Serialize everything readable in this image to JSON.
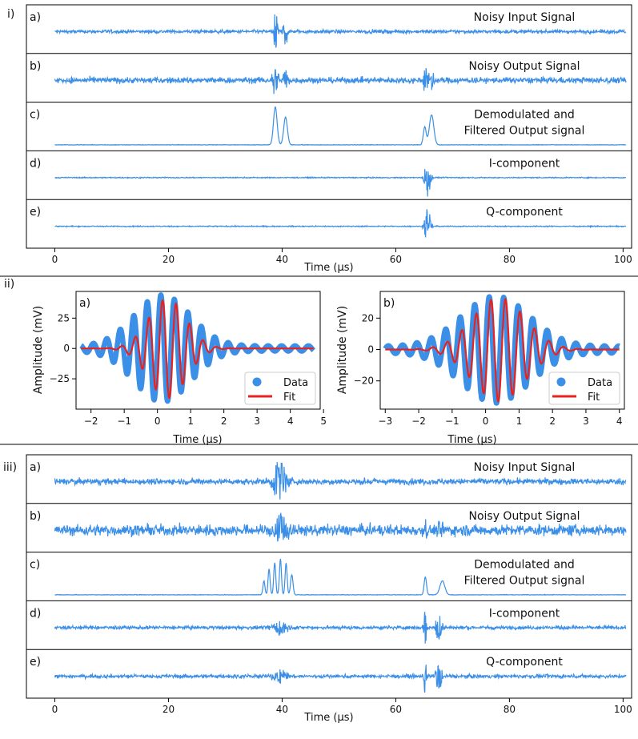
{
  "colors": {
    "data": "#3c8fe6",
    "fit": "#e8231f",
    "frame": "#000000"
  },
  "sections": [
    {
      "label": "i)",
      "xlabel": "Time (µs)",
      "xticks": [
        0,
        20,
        40,
        60,
        80,
        100
      ],
      "xrange": [
        -5,
        101.5
      ],
      "panels": [
        {
          "letter": "a)",
          "title_lines": [
            "Noisy Input Signal"
          ],
          "type": "noisy",
          "noise": 0.07,
          "bursts": [
            {
              "c": 38.8,
              "w": 0.45,
              "a": 0.9,
              "f": 3
            },
            {
              "c": 40.6,
              "w": 0.45,
              "a": 0.65,
              "f": 3
            }
          ]
        },
        {
          "letter": "b)",
          "title_lines": [
            "Noisy Output Signal"
          ],
          "type": "noisy",
          "noise": 0.12,
          "bursts": [
            {
              "c": 38.8,
              "w": 0.5,
              "a": 0.85,
              "f": 3
            },
            {
              "c": 40.6,
              "w": 0.5,
              "a": 0.6,
              "f": 3
            },
            {
              "c": 65.2,
              "w": 0.45,
              "a": 0.55,
              "f": 3
            },
            {
              "c": 66.4,
              "w": 0.5,
              "a": 0.5,
              "f": 3
            }
          ]
        },
        {
          "letter": "c)",
          "title_lines": [
            "Demodulated and",
            "Filtered Output signal"
          ],
          "type": "envelope",
          "noise": 0.01,
          "bursts": [
            {
              "c": 38.8,
              "w": 0.45,
              "a": 0.95
            },
            {
              "c": 40.6,
              "w": 0.45,
              "a": 0.7
            },
            {
              "c": 65.1,
              "w": 0.35,
              "a": 0.45
            },
            {
              "c": 66.3,
              "w": 0.55,
              "a": 0.75
            }
          ]
        },
        {
          "letter": "d)",
          "title_lines": [
            "I-component"
          ],
          "type": "noisy",
          "noise": 0.02,
          "bursts": [
            {
              "c": 65.6,
              "w": 0.55,
              "a": 0.85,
              "f": 2.5
            }
          ]
        },
        {
          "letter": "e)",
          "title_lines": [
            "Q-component"
          ],
          "type": "noisy",
          "noise": 0.02,
          "bursts": [
            {
              "c": 65.6,
              "w": 0.55,
              "a": 0.9,
              "f": 2.5
            }
          ]
        }
      ]
    },
    {
      "label": "iii)",
      "xlabel": "Time (µs)",
      "xticks": [
        0,
        20,
        40,
        60,
        80,
        100
      ],
      "xrange": [
        -5,
        101.5
      ],
      "panels": [
        {
          "letter": "a)",
          "title_lines": [
            "Noisy Input Signal"
          ],
          "type": "noisy",
          "noise": 0.12,
          "bursts": [
            {
              "c": 39.6,
              "w": 1.4,
              "a": 0.85,
              "f": 1.2
            }
          ]
        },
        {
          "letter": "b)",
          "title_lines": [
            "Noisy Output Signal"
          ],
          "type": "noisy",
          "noise": 0.22,
          "bursts": [
            {
              "c": 39.6,
              "w": 1.5,
              "a": 0.7,
              "f": 1.2
            },
            {
              "c": 65.3,
              "w": 0.4,
              "a": 0.4,
              "f": 2
            },
            {
              "c": 68.0,
              "w": 0.6,
              "a": 0.35,
              "f": 2
            }
          ]
        },
        {
          "letter": "c)",
          "title_lines": [
            "Demodulated and",
            "Filtered Output signal"
          ],
          "type": "envelope",
          "noise": 0.01,
          "bursts": [
            {
              "c": 36.8,
              "w": 0.25,
              "a": 0.35
            },
            {
              "c": 37.7,
              "w": 0.25,
              "a": 0.65
            },
            {
              "c": 38.7,
              "w": 0.25,
              "a": 0.8
            },
            {
              "c": 39.7,
              "w": 0.25,
              "a": 0.9
            },
            {
              "c": 40.7,
              "w": 0.25,
              "a": 0.8
            },
            {
              "c": 41.7,
              "w": 0.3,
              "a": 0.5
            },
            {
              "c": 65.2,
              "w": 0.3,
              "a": 0.45
            },
            {
              "c": 68.2,
              "w": 0.6,
              "a": 0.35
            }
          ]
        },
        {
          "letter": "d)",
          "title_lines": [
            "I-component"
          ],
          "type": "noisy",
          "noise": 0.07,
          "bursts": [
            {
              "c": 39.6,
              "w": 1.3,
              "a": 0.35,
              "f": 1.2
            },
            {
              "c": 65.2,
              "w": 0.25,
              "a": 0.95,
              "f": 2
            },
            {
              "c": 67.6,
              "w": 0.7,
              "a": 0.55,
              "f": 2
            }
          ]
        },
        {
          "letter": "e)",
          "title_lines": [
            "Q-component"
          ],
          "type": "noisy",
          "noise": 0.07,
          "bursts": [
            {
              "c": 39.6,
              "w": 1.3,
              "a": 0.35,
              "f": 1.2
            },
            {
              "c": 65.2,
              "w": 0.25,
              "a": 0.95,
              "f": 2
            },
            {
              "c": 67.6,
              "w": 0.7,
              "a": 0.55,
              "f": 2
            }
          ]
        }
      ]
    }
  ],
  "fits": {
    "label": "ii)",
    "xlabel": "Time (µs)",
    "ylabel": "Amplitude (mV)",
    "legend": {
      "data": "Data",
      "fit": "Fit"
    },
    "panels": [
      {
        "letter": "a)",
        "xrange": [
          -2.45,
          4.9
        ],
        "yrange": [
          -50,
          47
        ],
        "xticks": [
          -2,
          -1,
          0,
          1,
          2,
          3,
          4,
          5
        ],
        "yticks": [
          25,
          0,
          -25
        ],
        "data_amp": 42,
        "data_center": 0.15,
        "data_width": 0.75,
        "fit_amp": 41,
        "fit_center": 0.3,
        "fit_width": 0.5,
        "freq": 2.45,
        "span": [
          -2.3,
          4.7
        ]
      },
      {
        "letter": "b)",
        "xrange": [
          -3.15,
          4.15
        ],
        "yrange": [
          -38,
          37
        ],
        "xticks": [
          -3,
          -2,
          -1,
          0,
          1,
          2,
          3,
          4
        ],
        "yticks": [
          20,
          0,
          -20
        ],
        "data_amp": 32,
        "data_center": 0.3,
        "data_width": 0.9,
        "fit_amp": 33,
        "fit_center": 0.4,
        "fit_width": 0.7,
        "freq": 2.3,
        "span": [
          -3.0,
          4.0
        ]
      }
    ]
  }
}
